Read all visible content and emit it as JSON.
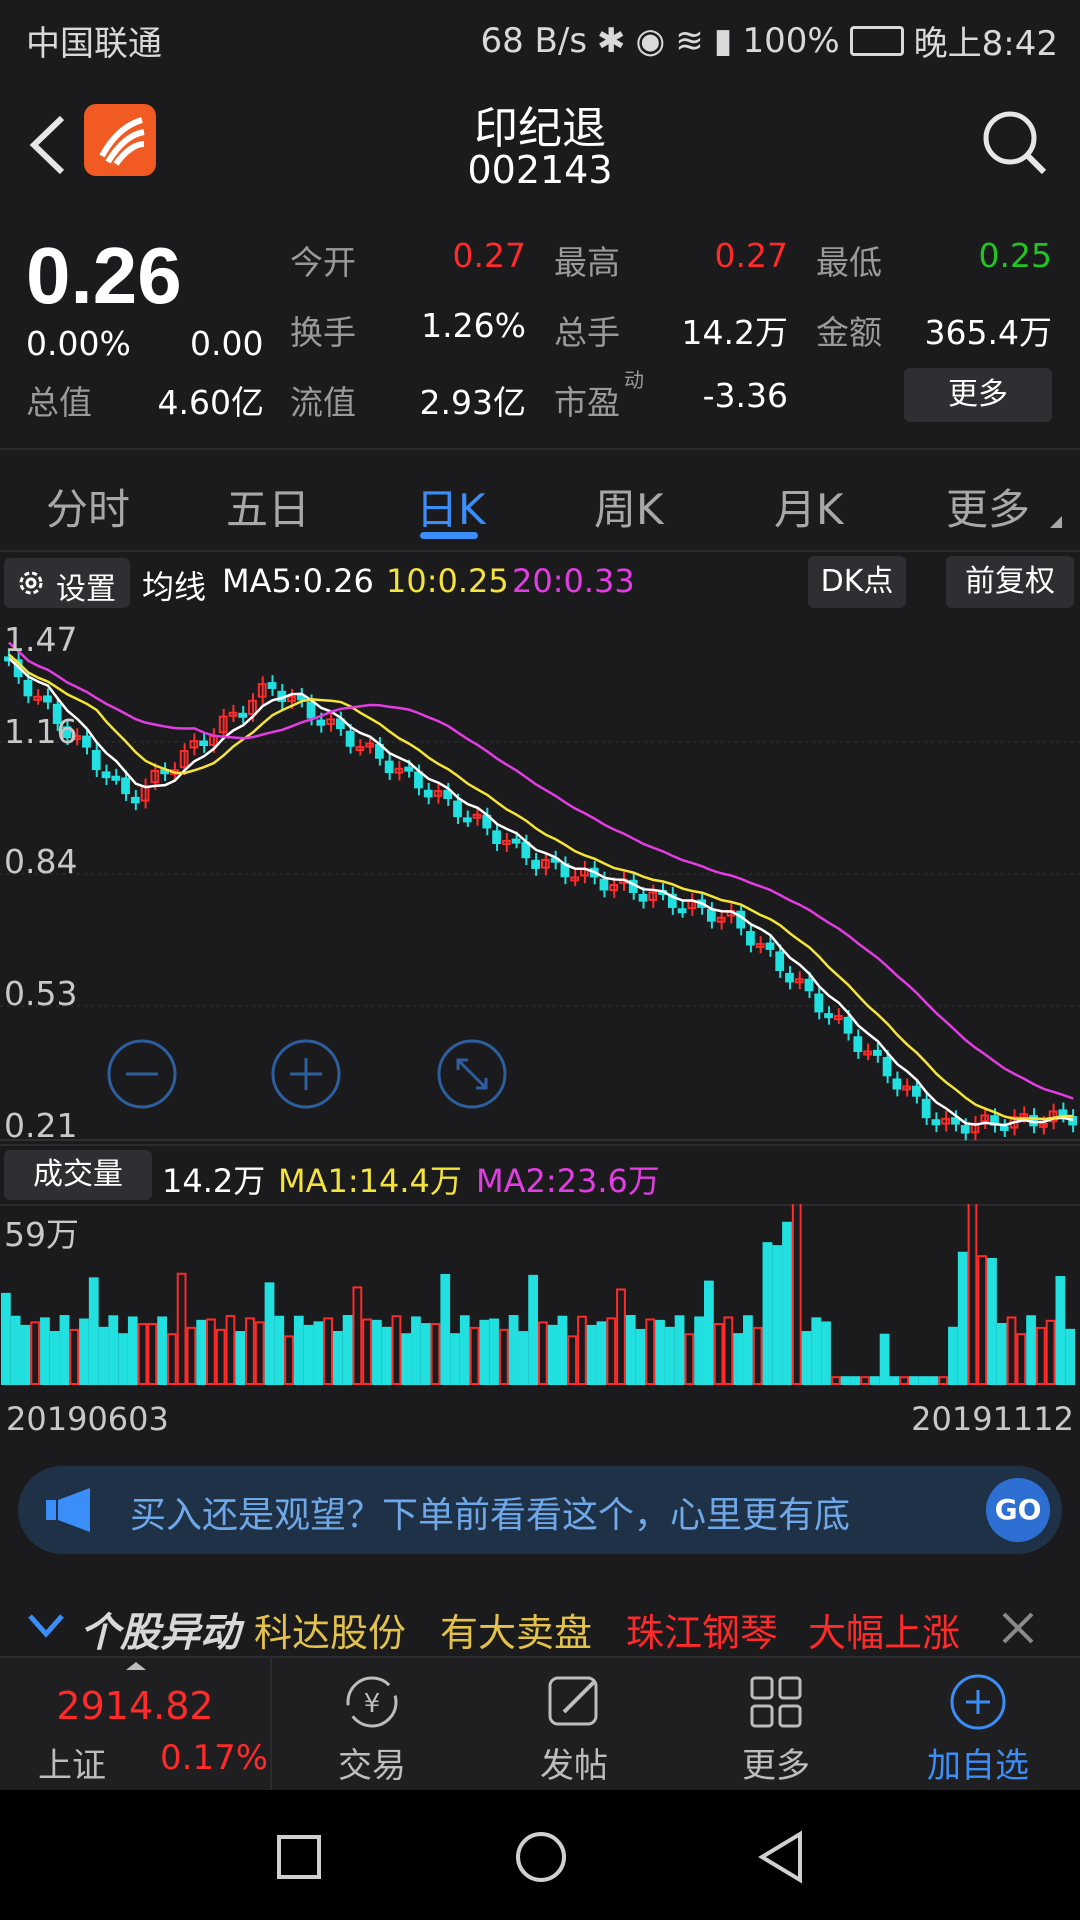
{
  "status_bar": {
    "carrier": "中国联通",
    "speed": "68 B/s",
    "battery": "100%",
    "time": "晚上8:42"
  },
  "header": {
    "stock_name": "印纪退",
    "stock_code": "002143"
  },
  "quote": {
    "price": "0.26",
    "change_pct": "0.00%",
    "change": "0.00",
    "total_value_label": "总值",
    "total_value": "4.60亿",
    "open_label": "今开",
    "open": "0.27",
    "high_label": "最高",
    "high": "0.27",
    "low_label": "最低",
    "low": "0.25",
    "turnover_label": "换手",
    "turnover": "1.26%",
    "volume_label": "总手",
    "volume": "14.2万",
    "amount_label": "金额",
    "amount": "365.4万",
    "float_value_label": "流值",
    "float_value": "2.93亿",
    "pe_label": "市盈",
    "pe_sup": "动",
    "pe": "-3.36",
    "more_label": "更多"
  },
  "tabs": [
    "分时",
    "五日",
    "日K",
    "周K",
    "月K",
    "更多"
  ],
  "active_tab": 2,
  "kline_bar": {
    "settings_label": "设置",
    "ma_label": "均线",
    "ma5": "MA5:0.26",
    "ma10": "10:0.25",
    "ma20": "20:0.33",
    "dk_label": "DK点",
    "adjust_label": "前复权"
  },
  "kline_axis": [
    "1.47",
    "1.16",
    "0.84",
    "0.53",
    "0.21"
  ],
  "volume_bar": {
    "label": "成交量",
    "value": "14.2万",
    "ma1": "MA1:14.4万",
    "ma2": "MA2:23.6万",
    "axis_top": "59万"
  },
  "dates": {
    "start": "20190603",
    "end": "20191112"
  },
  "promo": {
    "text": "买入还是观望？下单前看看这个，心里更有底",
    "go": "GO"
  },
  "ticker": {
    "title": "个股异动",
    "item1_name": "科达股份",
    "item1_event": "有大卖盘",
    "item2_name": "珠江钢琴",
    "item2_event": "大幅上涨"
  },
  "bottom_nav": {
    "index_value": "2914.82",
    "index_name": "上证",
    "index_change": "0.17%",
    "trade": "交易",
    "post": "发帖",
    "more": "更多",
    "add_watch": "加自选"
  },
  "colors": {
    "up": "#ff2a2a",
    "down": "#22e0e0",
    "accent": "#3b8ef7",
    "ma5": "#ffffff",
    "ma10": "#f3e33b",
    "ma20": "#e23de2"
  }
}
